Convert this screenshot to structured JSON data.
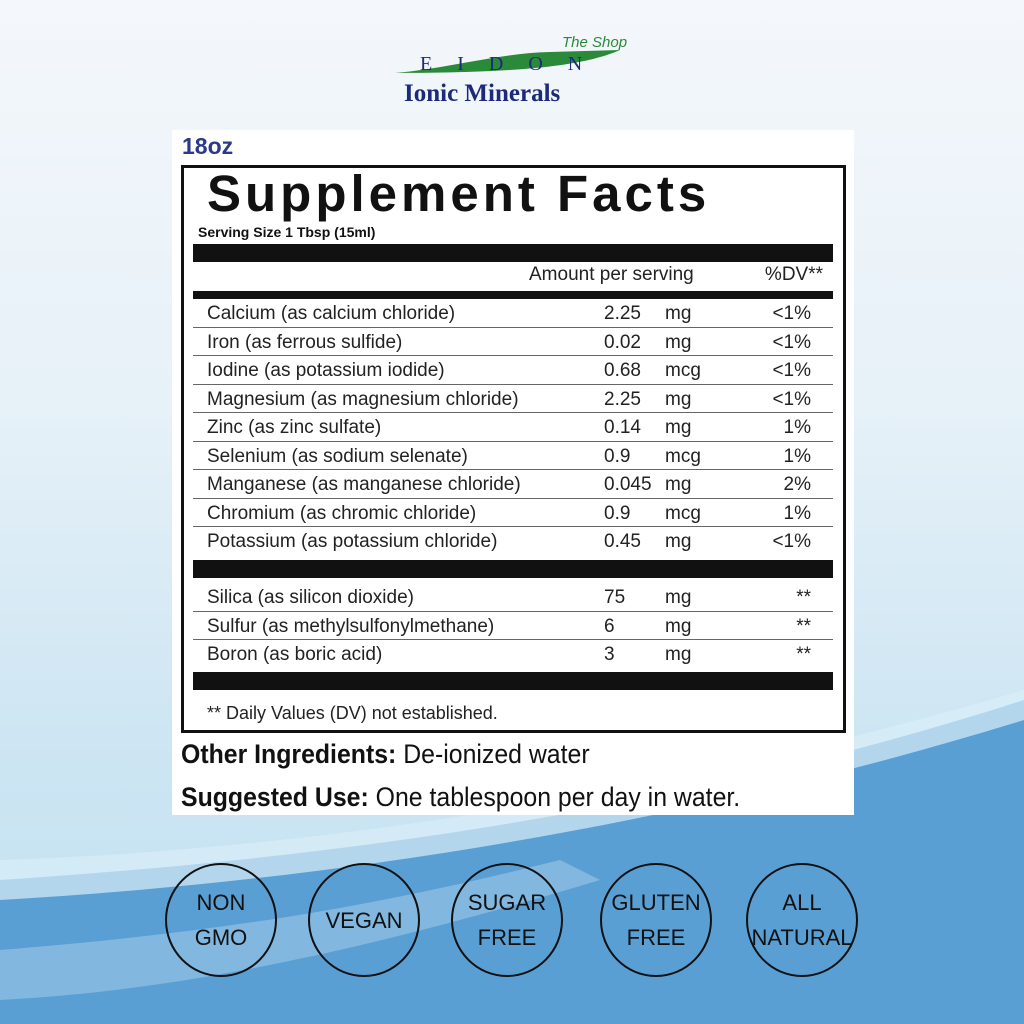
{
  "brand": {
    "logo_letters": "EIDON",
    "tagline": "The Shop",
    "name": "Ionic Minerals",
    "colors": {
      "navy": "#1c2a7a",
      "green": "#2b8a3a"
    }
  },
  "label": {
    "size": "18oz",
    "title": "Supplement Facts",
    "serving": "Serving Size 1 Tbsp (15ml)",
    "header_amount": "Amount per serving",
    "header_dv": "%DV**",
    "rows": [
      {
        "name": "Calcium (as calcium chloride)",
        "amount": "2.25",
        "unit": "mg",
        "dv": "<1%"
      },
      {
        "name": "Iron (as ferrous sulfide)",
        "amount": "0.02",
        "unit": "mg",
        "dv": "<1%"
      },
      {
        "name": "Iodine (as potassium iodide)",
        "amount": "0.68",
        "unit": "mcg",
        "dv": "<1%"
      },
      {
        "name": "Magnesium (as magnesium chloride)",
        "amount": "2.25",
        "unit": "mg",
        "dv": "<1%"
      },
      {
        "name": "Zinc (as zinc sulfate)",
        "amount": "0.14",
        "unit": "mg",
        "dv": "1%"
      },
      {
        "name": "Selenium (as sodium selenate)",
        "amount": "0.9",
        "unit": "mcg",
        "dv": "1%"
      },
      {
        "name": "Manganese (as manganese chloride)",
        "amount": "0.045",
        "unit": "mg",
        "dv": "2%"
      },
      {
        "name": "Chromium (as chromic chloride)",
        "amount": "0.9",
        "unit": "mcg",
        "dv": "1%"
      },
      {
        "name": "Potassium (as potassium chloride)",
        "amount": "0.45",
        "unit": "mg",
        "dv": "<1%"
      }
    ],
    "rows2": [
      {
        "name": "Silica (as silicon dioxide)",
        "amount": "75",
        "unit": "mg",
        "dv": "**"
      },
      {
        "name": "Sulfur (as methylsulfonylmethane)",
        "amount": "6",
        "unit": "mg",
        "dv": "**"
      },
      {
        "name": "Boron (as boric acid)",
        "amount": "3",
        "unit": "mg",
        "dv": "**"
      }
    ],
    "footnote": "** Daily Values (DV) not established.",
    "other_label": "Other Ingredients:",
    "other_value": " De-ionized water",
    "use_label": "Suggested Use:",
    "use_value": " One tablespoon per day in water."
  },
  "badges": [
    [
      "NON",
      "GMO"
    ],
    [
      "VEGAN"
    ],
    [
      "SUGAR",
      "FREE"
    ],
    [
      "GLUTEN",
      "FREE"
    ],
    [
      "ALL",
      "NATURAL"
    ]
  ]
}
